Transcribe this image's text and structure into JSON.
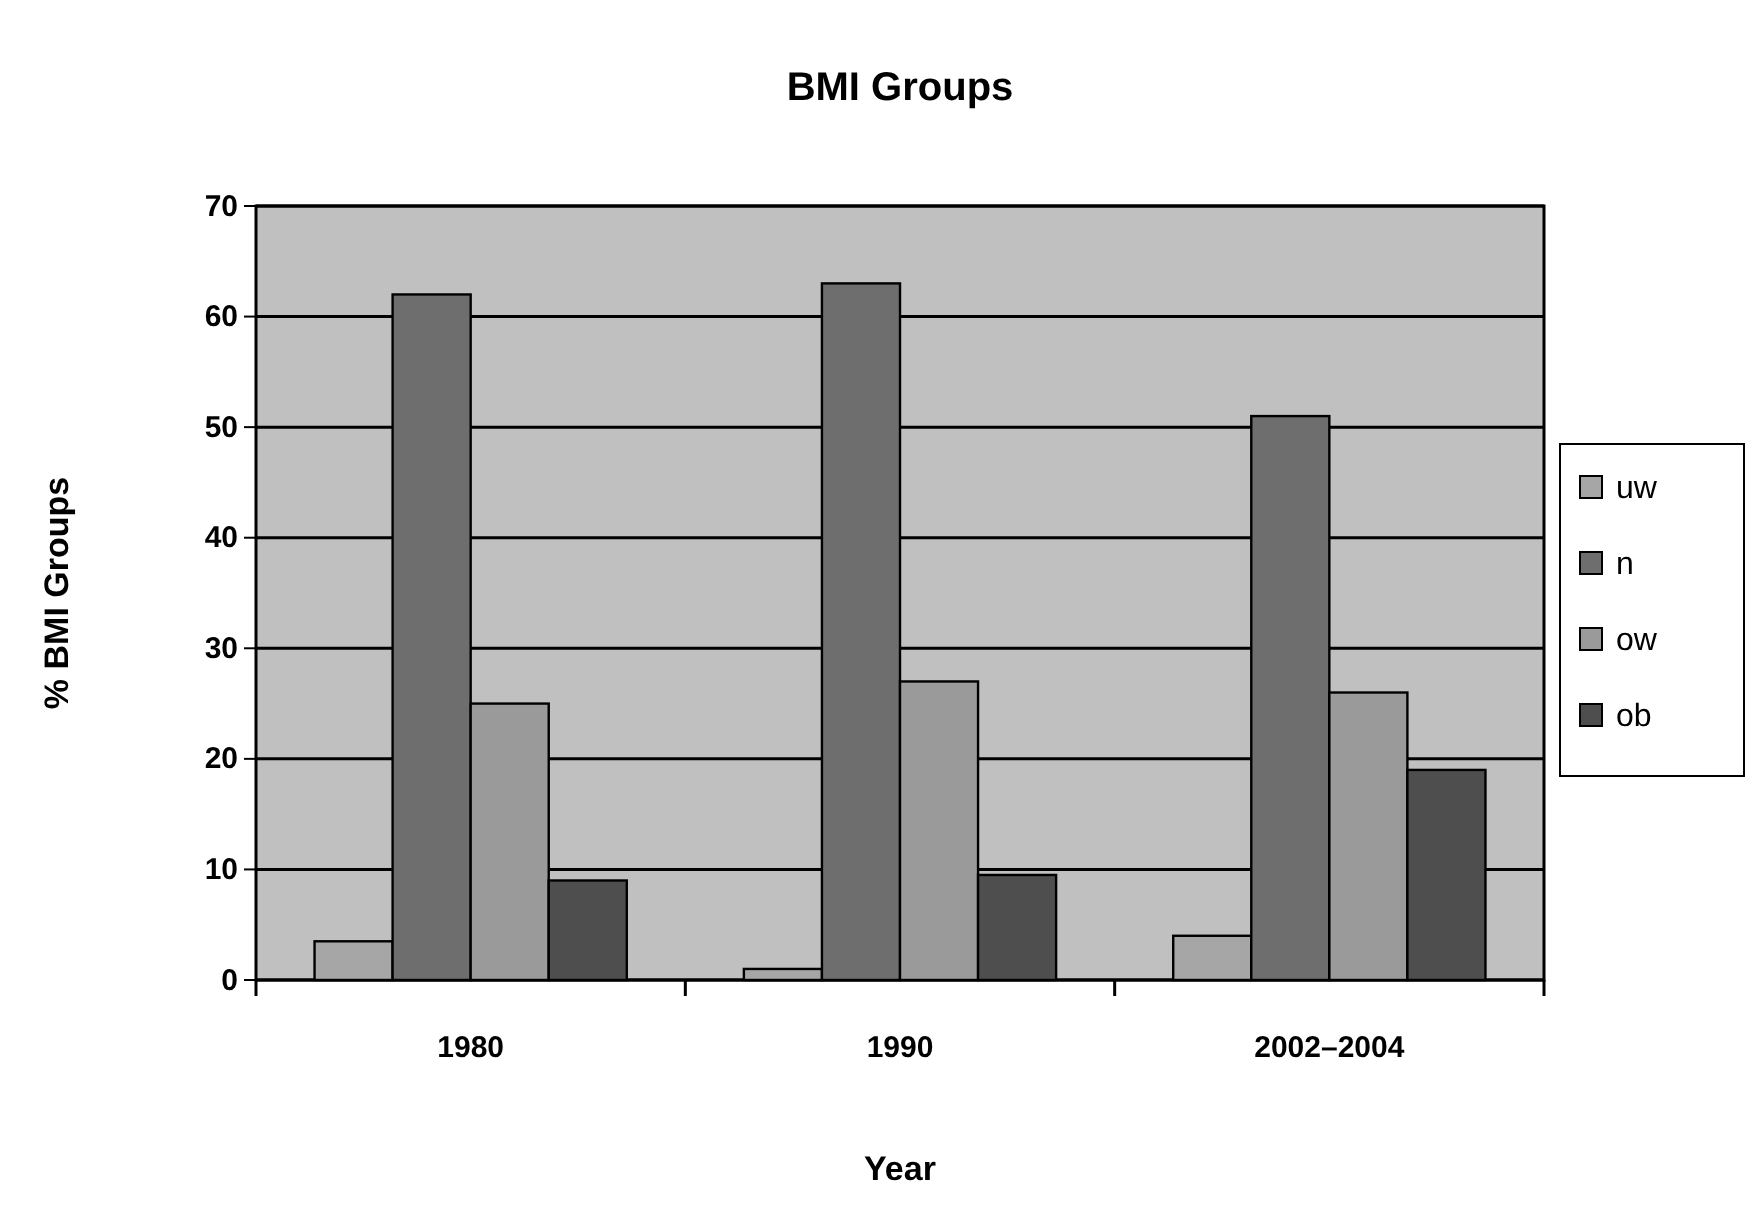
{
  "chart_data": {
    "type": "bar",
    "title": "BMI Groups",
    "xlabel": "Year",
    "ylabel": "% BMI Groups",
    "categories": [
      "1980",
      "1990",
      "2002–2004"
    ],
    "series": [
      {
        "name": "uw",
        "color": "#a6a6a6",
        "values": [
          3.5,
          1,
          4
        ]
      },
      {
        "name": "n",
        "color": "#6e6e6e",
        "values": [
          62,
          63,
          51
        ]
      },
      {
        "name": "ow",
        "color": "#9a9a9a",
        "values": [
          25,
          27,
          26
        ]
      },
      {
        "name": "ob",
        "color": "#4e4e4e",
        "values": [
          9,
          9.5,
          19
        ]
      }
    ],
    "ylim": [
      0,
      70
    ],
    "yticks": [
      0,
      10,
      20,
      30,
      40,
      50,
      60,
      70
    ],
    "grid": "y",
    "legend": "right"
  }
}
